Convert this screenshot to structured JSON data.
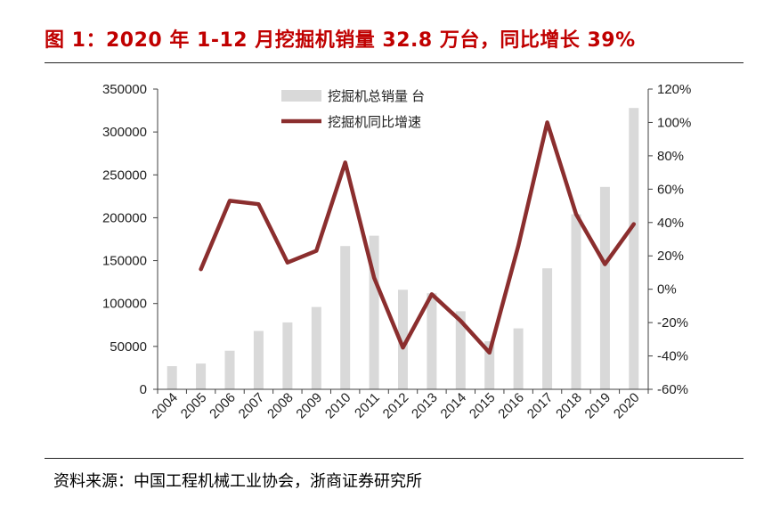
{
  "title": "图 1：2020 年 1-12 月挖掘机销量 32.8 万台，同比增长 39%",
  "source": "资料来源：中国工程机械工业协会，浙商证券研究所",
  "chart_data": {
    "type": "bar+line",
    "categories": [
      "2004",
      "2005",
      "2006",
      "2007",
      "2008",
      "2009",
      "2010",
      "2011",
      "2012",
      "2013",
      "2014",
      "2015",
      "2016",
      "2017",
      "2018",
      "2019",
      "2020"
    ],
    "series": [
      {
        "name": "挖掘机总销量 台",
        "type": "bar",
        "axis": "left",
        "color": "#d9d9d9",
        "values": [
          27000,
          30000,
          45000,
          68000,
          78000,
          96000,
          167000,
          179000,
          116000,
          112000,
          91000,
          56000,
          71000,
          141000,
          204000,
          236000,
          328000
        ]
      },
      {
        "name": "挖掘机同比增速",
        "type": "line",
        "axis": "right",
        "color": "#8b2e2e",
        "values": [
          null,
          0.12,
          0.53,
          0.51,
          0.16,
          0.23,
          0.76,
          0.07,
          -0.35,
          -0.03,
          -0.19,
          -0.38,
          0.26,
          1.0,
          0.45,
          0.15,
          0.39
        ]
      }
    ],
    "yAxisLeft": {
      "min": 0,
      "max": 350000,
      "ticks": [
        "0",
        "50000",
        "100000",
        "150000",
        "200000",
        "250000",
        "300000",
        "350000"
      ]
    },
    "yAxisRight": {
      "min": -0.6,
      "max": 1.2,
      "ticks": [
        "-60%",
        "-40%",
        "-20%",
        "0%",
        "20%",
        "40%",
        "60%",
        "80%",
        "100%",
        "120%"
      ]
    },
    "grid": false,
    "legend_position": "top-center"
  }
}
